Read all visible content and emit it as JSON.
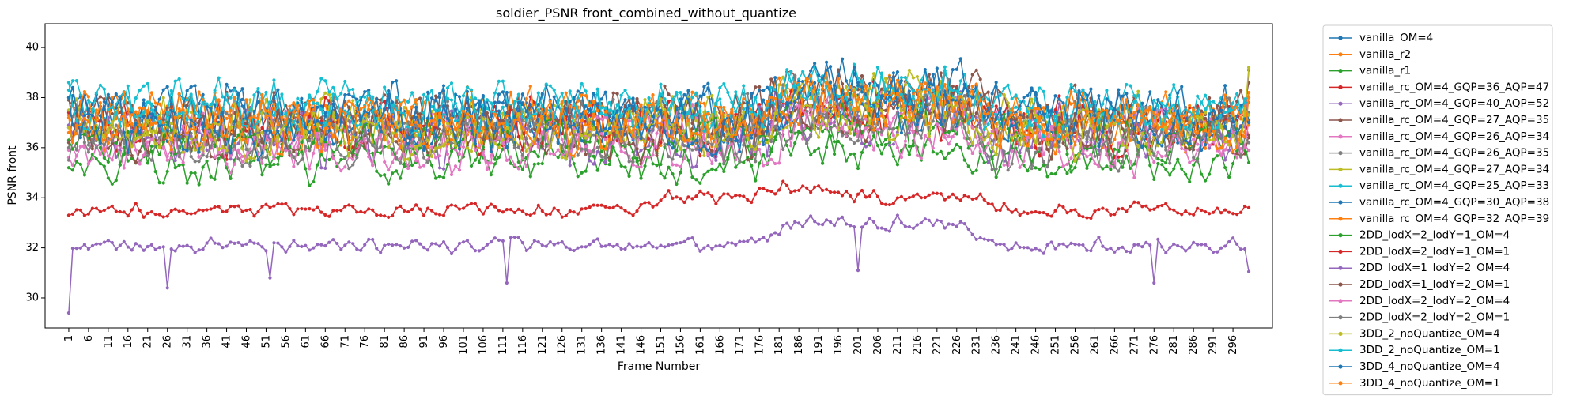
{
  "chart_data": {
    "type": "line",
    "title": "soldier_PSNR front_combined_without_quantize",
    "xlabel": "Frame Number",
    "ylabel": "PSNR front",
    "xlim": [
      -5,
      306
    ],
    "ylim": [
      28.8,
      40.95
    ],
    "x_ticks": [
      1,
      6,
      11,
      16,
      21,
      26,
      31,
      36,
      41,
      46,
      51,
      56,
      61,
      66,
      71,
      76,
      81,
      86,
      91,
      96,
      101,
      106,
      111,
      116,
      121,
      126,
      131,
      136,
      141,
      146,
      151,
      156,
      161,
      166,
      171,
      176,
      181,
      186,
      191,
      196,
      201,
      206,
      211,
      216,
      221,
      226,
      231,
      236,
      241,
      246,
      251,
      256,
      261,
      266,
      271,
      276,
      281,
      286,
      291,
      296
    ],
    "y_ticks": [
      30,
      32,
      34,
      36,
      38,
      40
    ],
    "frames": {
      "start": 1,
      "end": 300
    },
    "grid": false,
    "legend_position": "outside-right",
    "series": [
      {
        "name": "vanilla_OM=4",
        "color": "#1f77b4",
        "base": 37.2,
        "amp": 1.4,
        "bumps": [
          [
            175,
            235,
            0.8
          ]
        ],
        "first": 36.8,
        "last": 37.0
      },
      {
        "name": "vanilla_r2",
        "color": "#ff7f0e",
        "base": 37.0,
        "amp": 1.3,
        "bumps": [
          [
            175,
            235,
            0.7
          ]
        ],
        "first": 37.3,
        "last": 38.2
      },
      {
        "name": "vanilla_r1",
        "color": "#2ca02c",
        "base": 35.4,
        "amp": 1.0,
        "bumps": [
          [
            175,
            235,
            0.5
          ]
        ],
        "first": 35.2,
        "last": 35.4
      },
      {
        "name": "vanilla_rc_OM=4_GQP=36_AQP=47",
        "color": "#d62728",
        "base": 36.8,
        "amp": 1.4,
        "bumps": [
          [
            175,
            235,
            0.8
          ]
        ],
        "first": 37.4,
        "last": 36.4
      },
      {
        "name": "vanilla_rc_OM=4_GQP=40_AQP=52",
        "color": "#9467bd",
        "base": 36.5,
        "amp": 1.4,
        "bumps": [
          [
            175,
            235,
            0.8
          ]
        ],
        "first": 36.9,
        "last": 39.1
      },
      {
        "name": "vanilla_rc_OM=4_GQP=27_AQP=35",
        "color": "#8c564b",
        "base": 37.3,
        "amp": 1.3,
        "bumps": [
          [
            175,
            240,
            0.9
          ]
        ],
        "first": 37.9,
        "last": 38.6
      },
      {
        "name": "vanilla_rc_OM=4_GQP=26_AQP=34",
        "color": "#e377c2",
        "base": 36.6,
        "amp": 1.3,
        "bumps": [
          [
            175,
            235,
            0.8
          ]
        ],
        "first": 35.9,
        "last": 37.1
      },
      {
        "name": "vanilla_rc_OM=4_GQP=26_AQP=35",
        "color": "#7f7f7f",
        "base": 37.0,
        "amp": 1.3,
        "bumps": [
          [
            175,
            235,
            0.8
          ]
        ],
        "first": 36.0,
        "last": 37.4
      },
      {
        "name": "vanilla_rc_OM=4_GQP=27_AQP=34",
        "color": "#bcbd22",
        "base": 37.1,
        "amp": 1.3,
        "bumps": [
          [
            175,
            235,
            0.9
          ]
        ],
        "first": 37.5,
        "last": 39.2
      },
      {
        "name": "vanilla_rc_OM=4_GQP=25_AQP=33",
        "color": "#17becf",
        "base": 37.8,
        "amp": 1.1,
        "bumps": [
          [
            175,
            235,
            0.7
          ]
        ],
        "first": 38.3,
        "last": 38.0
      },
      {
        "name": "vanilla_rc_OM=4_GQP=30_AQP=38",
        "color": "#1f77b4",
        "base": 37.4,
        "amp": 1.4,
        "bumps": [
          [
            175,
            235,
            0.9
          ]
        ],
        "first": 38.0,
        "last": 37.1
      },
      {
        "name": "vanilla_rc_OM=4_GQP=32_AQP=39",
        "color": "#ff7f0e",
        "base": 37.2,
        "amp": 1.3,
        "bumps": [
          [
            175,
            235,
            0.8
          ]
        ],
        "first": 36.6,
        "last": 36.9
      },
      {
        "name": "2DD_lodX=2_lodY=1_OM=4",
        "color": "#2ca02c",
        "base": 36.2,
        "amp": 1.2,
        "bumps": [
          [
            175,
            235,
            0.6
          ]
        ],
        "first": 36.3,
        "last": 35.9
      },
      {
        "name": "2DD_lodX=2_lodY=1_OM=1",
        "color": "#d62728",
        "base": 33.5,
        "amp": 0.35,
        "bumps": [
          [
            145,
            240,
            0.5
          ],
          [
            175,
            200,
            0.5
          ]
        ],
        "first": 33.3,
        "last": 33.6
      },
      {
        "name": "2DD_lodX=1_lodY=2_OM=4",
        "color": "#9467bd",
        "base": 36.4,
        "amp": 1.3,
        "bumps": [
          [
            175,
            235,
            0.8
          ]
        ],
        "first": 35.8,
        "last": 36.8
      },
      {
        "name": "2DD_lodX=1_lodY=2_OM=1",
        "color": "#8c564b",
        "base": 36.6,
        "amp": 1.3,
        "bumps": [
          [
            175,
            240,
            0.8
          ]
        ],
        "first": 36.2,
        "last": 36.5
      },
      {
        "name": "2DD_lodX=2_lodY=2_OM=4",
        "color": "#e377c2",
        "base": 35.9,
        "amp": 1.2,
        "bumps": [
          [
            175,
            235,
            0.7
          ]
        ],
        "first": 35.6,
        "last": 35.9
      },
      {
        "name": "2DD_lodX=2_lodY=2_OM=1",
        "color": "#7f7f7f",
        "base": 36.2,
        "amp": 1.2,
        "bumps": [
          [
            175,
            235,
            0.7
          ]
        ],
        "first": 35.5,
        "last": 36.2
      },
      {
        "name": "3DD_2_noQuantize_OM=4",
        "color": "#bcbd22",
        "base": 36.6,
        "amp": 1.3,
        "bumps": [
          [
            175,
            235,
            0.8
          ]
        ],
        "first": 36.8,
        "last": 37.3
      },
      {
        "name": "3DD_2_noQuantize_OM=1",
        "color": "#17becf",
        "base": 37.5,
        "amp": 1.2,
        "bumps": [
          [
            175,
            235,
            0.8
          ]
        ],
        "first": 38.6,
        "last": 37.8
      },
      {
        "name": "3DD_4_noQuantize_OM=4",
        "color": "#1f77b4",
        "base": 37.0,
        "amp": 1.5,
        "bumps": [
          [
            175,
            235,
            0.9
          ]
        ],
        "first": 38.0,
        "last": 37.0
      },
      {
        "name": "3DD_4_noQuantize_OM=1",
        "color": "#ff7f0e",
        "base": 36.9,
        "amp": 1.3,
        "bumps": [
          [
            175,
            235,
            0.8
          ]
        ],
        "first": 37.2,
        "last": 38.0
      }
    ],
    "special_series": {
      "2DD_lodX=1_lodY=2_OM=4": {
        "low_track": {
          "base": 32.1,
          "amp": 0.35,
          "bumps": [
            [
              175,
              235,
              0.9
            ]
          ],
          "first": 29.4,
          "last": 31.05,
          "dips": [
            [
              26,
              30.4
            ],
            [
              52,
              30.8
            ],
            [
              112,
              30.6
            ],
            [
              201,
              31.1
            ],
            [
              276,
              30.6
            ]
          ]
        }
      }
    }
  }
}
